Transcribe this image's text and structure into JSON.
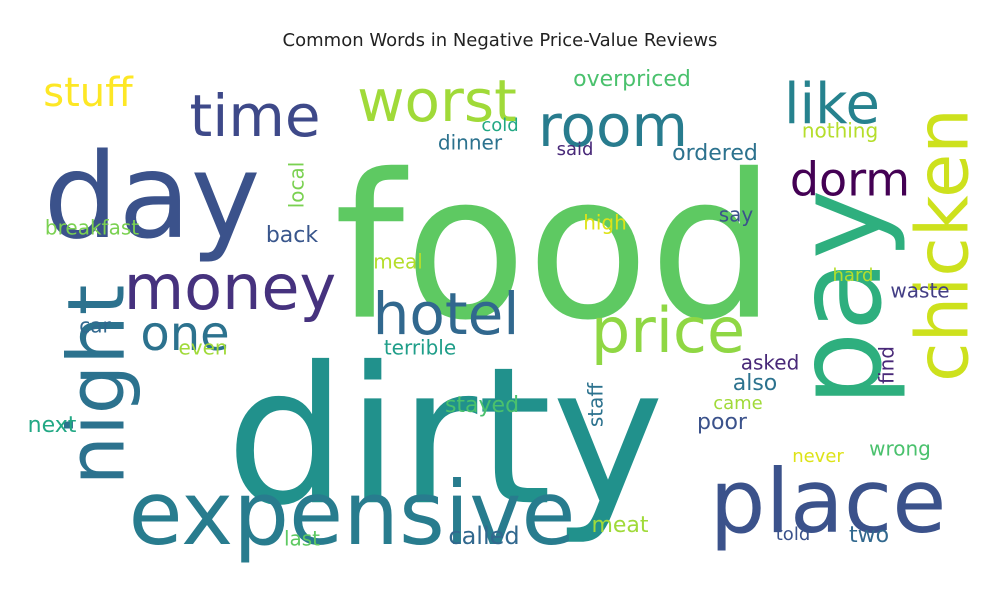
{
  "title": "Common Words in Negative Price-Value Reviews",
  "chart_data": {
    "type": "wordcloud",
    "title": "Common Words in Negative Price-Value Reviews",
    "colormap": "viridis",
    "background": "#ffffff",
    "words": [
      {
        "text": "food",
        "weight": 100,
        "color": "#5ec962",
        "orientation": "horizontal"
      },
      {
        "text": "dirty",
        "weight": 95,
        "color": "#21918c",
        "orientation": "horizontal"
      },
      {
        "text": "pay",
        "weight": 60,
        "color": "#2eaf7e",
        "orientation": "vertical"
      },
      {
        "text": "day",
        "weight": 58,
        "color": "#3b528b",
        "orientation": "horizontal"
      },
      {
        "text": "expensive",
        "weight": 44,
        "color": "#287c8e",
        "orientation": "horizontal"
      },
      {
        "text": "place",
        "weight": 44,
        "color": "#3b528b",
        "orientation": "horizontal"
      },
      {
        "text": "night",
        "weight": 38,
        "color": "#2c728e",
        "orientation": "vertical"
      },
      {
        "text": "chicken",
        "weight": 35,
        "color": "#cde11d",
        "orientation": "vertical"
      },
      {
        "text": "price",
        "weight": 30,
        "color": "#8fd744",
        "orientation": "horizontal"
      },
      {
        "text": "money",
        "weight": 29,
        "color": "#46327e",
        "orientation": "horizontal"
      },
      {
        "text": "hotel",
        "weight": 28,
        "color": "#31688e",
        "orientation": "horizontal"
      },
      {
        "text": "room",
        "weight": 27,
        "color": "#287c8e",
        "orientation": "horizontal"
      },
      {
        "text": "time",
        "weight": 26,
        "color": "#3e4989",
        "orientation": "horizontal"
      },
      {
        "text": "worst",
        "weight": 25,
        "color": "#a0da39",
        "orientation": "horizontal"
      },
      {
        "text": "one",
        "weight": 23,
        "color": "#2c728e",
        "orientation": "horizontal"
      },
      {
        "text": "like",
        "weight": 21,
        "color": "#26828e",
        "orientation": "horizontal"
      },
      {
        "text": "dorm",
        "weight": 19,
        "color": "#440154",
        "orientation": "horizontal"
      },
      {
        "text": "stuff",
        "weight": 17,
        "color": "#fde725",
        "orientation": "horizontal"
      },
      {
        "text": "overpriced",
        "weight": 9,
        "color": "#4ac16d",
        "orientation": "horizontal"
      },
      {
        "text": "back",
        "weight": 9,
        "color": "#39568c",
        "orientation": "horizontal"
      },
      {
        "text": "dinner",
        "weight": 8,
        "color": "#2c728e",
        "orientation": "horizontal"
      },
      {
        "text": "ordered",
        "weight": 8,
        "color": "#2c728e",
        "orientation": "horizontal"
      },
      {
        "text": "breakfast",
        "weight": 8,
        "color": "#7ad151",
        "orientation": "horizontal"
      },
      {
        "text": "local",
        "weight": 8,
        "color": "#7ad151",
        "orientation": "vertical"
      },
      {
        "text": "meal",
        "weight": 8,
        "color": "#b5de2b",
        "orientation": "horizontal"
      },
      {
        "text": "high",
        "weight": 8,
        "color": "#dde318",
        "orientation": "horizontal"
      },
      {
        "text": "say",
        "weight": 7,
        "color": "#3b528b",
        "orientation": "horizontal"
      },
      {
        "text": "said",
        "weight": 7,
        "color": "#482878",
        "orientation": "horizontal"
      },
      {
        "text": "cold",
        "weight": 7,
        "color": "#22a884",
        "orientation": "horizontal"
      },
      {
        "text": "nothing",
        "weight": 7,
        "color": "#b5de2b",
        "orientation": "horizontal"
      },
      {
        "text": "hard",
        "weight": 7,
        "color": "#b5de2b",
        "orientation": "horizontal"
      },
      {
        "text": "waste",
        "weight": 7,
        "color": "#433e85",
        "orientation": "horizontal"
      },
      {
        "text": "car",
        "weight": 7,
        "color": "#31688e",
        "orientation": "horizontal"
      },
      {
        "text": "even",
        "weight": 7,
        "color": "#a0da39",
        "orientation": "horizontal"
      },
      {
        "text": "terrible",
        "weight": 7,
        "color": "#1f9e89",
        "orientation": "horizontal"
      },
      {
        "text": "asked",
        "weight": 7,
        "color": "#482878",
        "orientation": "horizontal"
      },
      {
        "text": "find",
        "weight": 7,
        "color": "#482878",
        "orientation": "vertical"
      },
      {
        "text": "also",
        "weight": 8,
        "color": "#2c728e",
        "orientation": "horizontal"
      },
      {
        "text": "stayed",
        "weight": 8,
        "color": "#4ac16d",
        "orientation": "horizontal"
      },
      {
        "text": "next",
        "weight": 8,
        "color": "#22a884",
        "orientation": "horizontal"
      },
      {
        "text": "poor",
        "weight": 8,
        "color": "#3b528b",
        "orientation": "horizontal"
      },
      {
        "text": "staff",
        "weight": 7,
        "color": "#2c728e",
        "orientation": "vertical"
      },
      {
        "text": "came",
        "weight": 7,
        "color": "#a0da39",
        "orientation": "horizontal"
      },
      {
        "text": "wrong",
        "weight": 7,
        "color": "#4ac16d",
        "orientation": "horizontal"
      },
      {
        "text": "never",
        "weight": 7,
        "color": "#dde318",
        "orientation": "horizontal"
      },
      {
        "text": "meat",
        "weight": 8,
        "color": "#a0da39",
        "orientation": "horizontal"
      },
      {
        "text": "called",
        "weight": 8,
        "color": "#31688e",
        "orientation": "horizontal"
      },
      {
        "text": "last",
        "weight": 7,
        "color": "#5ec962",
        "orientation": "horizontal"
      },
      {
        "text": "told",
        "weight": 7,
        "color": "#3b528b",
        "orientation": "horizontal"
      },
      {
        "text": "two",
        "weight": 8,
        "color": "#31688e",
        "orientation": "horizontal"
      }
    ]
  }
}
